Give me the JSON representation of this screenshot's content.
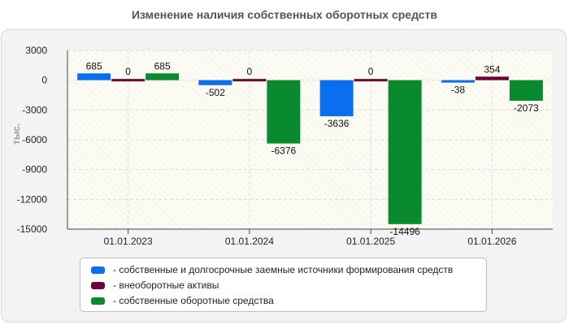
{
  "chart_data": {
    "type": "bar",
    "title": "Изменение наличия собственных оборотных средств",
    "ylabel": "тыс.",
    "xlabel": "",
    "ylim": [
      -15000,
      3000
    ],
    "yticks": [
      3000,
      0,
      -3000,
      -6000,
      -9000,
      -12000,
      -15000
    ],
    "categories": [
      "01.01.2023",
      "01.01.2024",
      "01.01.2025",
      "01.01.2026"
    ],
    "grid": true,
    "legend_position": "bottom",
    "series": [
      {
        "name": "собственные и долгосрочные заемные источники формирования средств",
        "color": "#0a6fee",
        "values": [
          685,
          -502,
          -3636,
          -38
        ]
      },
      {
        "name": "внеоборотные активы",
        "color": "#6a0535",
        "values": [
          0,
          0,
          0,
          354
        ]
      },
      {
        "name": "собственные оборотные средства",
        "color": "#0a8a2e",
        "values": [
          685,
          -6376,
          -14496,
          -2073
        ]
      }
    ]
  }
}
